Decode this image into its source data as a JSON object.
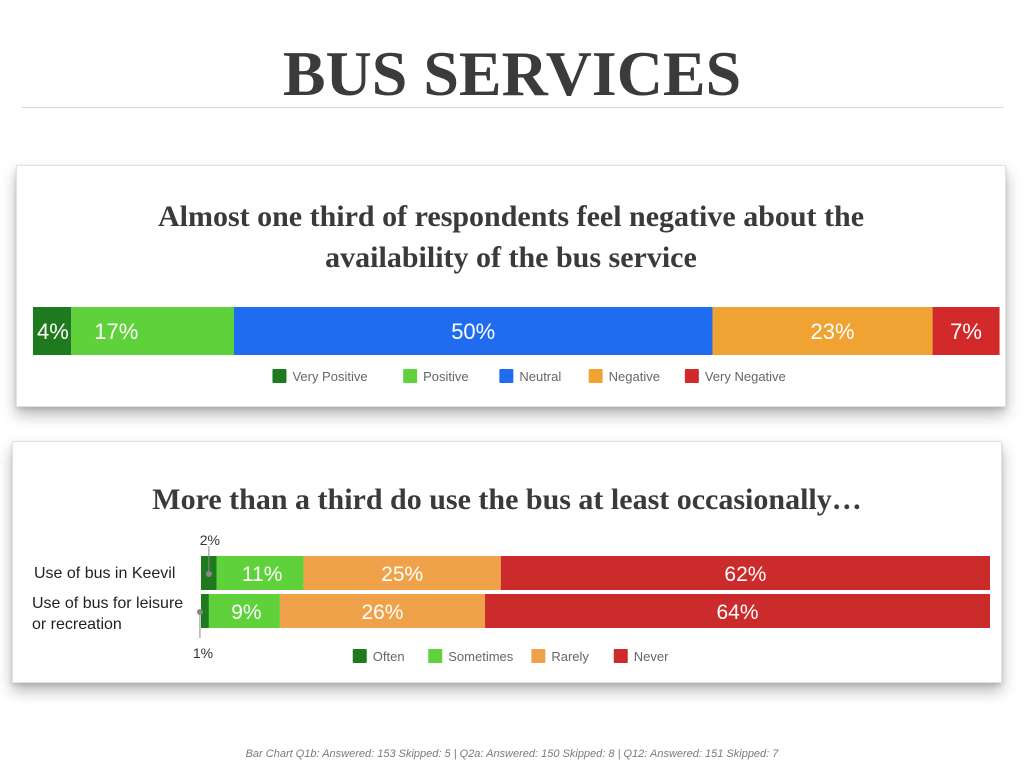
{
  "page": {
    "title": "BUS SERVICES",
    "footnote": "Bar Chart Q1b: Answered: 153  Skipped: 5 | Q2a: Answered: 150  Skipped: 8 | Q12: Answered: 151  Skipped: 7"
  },
  "chart_data": [
    {
      "type": "bar",
      "orientation": "horizontal-stacked",
      "title": "Almost one third of respondents feel negative about the availability of the bus service",
      "categories": [
        ""
      ],
      "series": [
        {
          "name": "Very Positive",
          "values": [
            4
          ],
          "label": "4%",
          "color": "#1f7a1f"
        },
        {
          "name": "Positive",
          "values": [
            17
          ],
          "label": "17%",
          "color": "#5ed13b"
        },
        {
          "name": "Neutral",
          "values": [
            50
          ],
          "label": "50%",
          "color": "#1f6cf0"
        },
        {
          "name": "Negative",
          "values": [
            23
          ],
          "label": "23%",
          "color": "#f0a232"
        },
        {
          "name": "Very Negative",
          "values": [
            7
          ],
          "label": "7%",
          "color": "#d22a2a"
        }
      ],
      "xlim": [
        0,
        100
      ],
      "legend": "bottom"
    },
    {
      "type": "bar",
      "orientation": "horizontal-stacked",
      "title": "More than a third do use the bus at least occasionally…",
      "categories": [
        "Use of bus in Keevil",
        "Use of bus for leisure\nor recreation"
      ],
      "series": [
        {
          "name": "Often",
          "values": [
            2,
            1
          ],
          "labels": [
            "2%",
            "1%"
          ],
          "color": "#1f7a1f"
        },
        {
          "name": "Sometimes",
          "values": [
            11,
            9
          ],
          "labels": [
            "11%",
            "9%"
          ],
          "color": "#5ed13b"
        },
        {
          "name": "Rarely",
          "values": [
            25,
            26
          ],
          "labels": [
            "25%",
            "26%"
          ],
          "color": "#f0a24a"
        },
        {
          "name": "Never",
          "values": [
            62,
            64
          ],
          "labels": [
            "62%",
            "64%"
          ],
          "color": "#cc2b2b"
        }
      ],
      "xlim": [
        0,
        100
      ],
      "legend": "bottom"
    }
  ]
}
